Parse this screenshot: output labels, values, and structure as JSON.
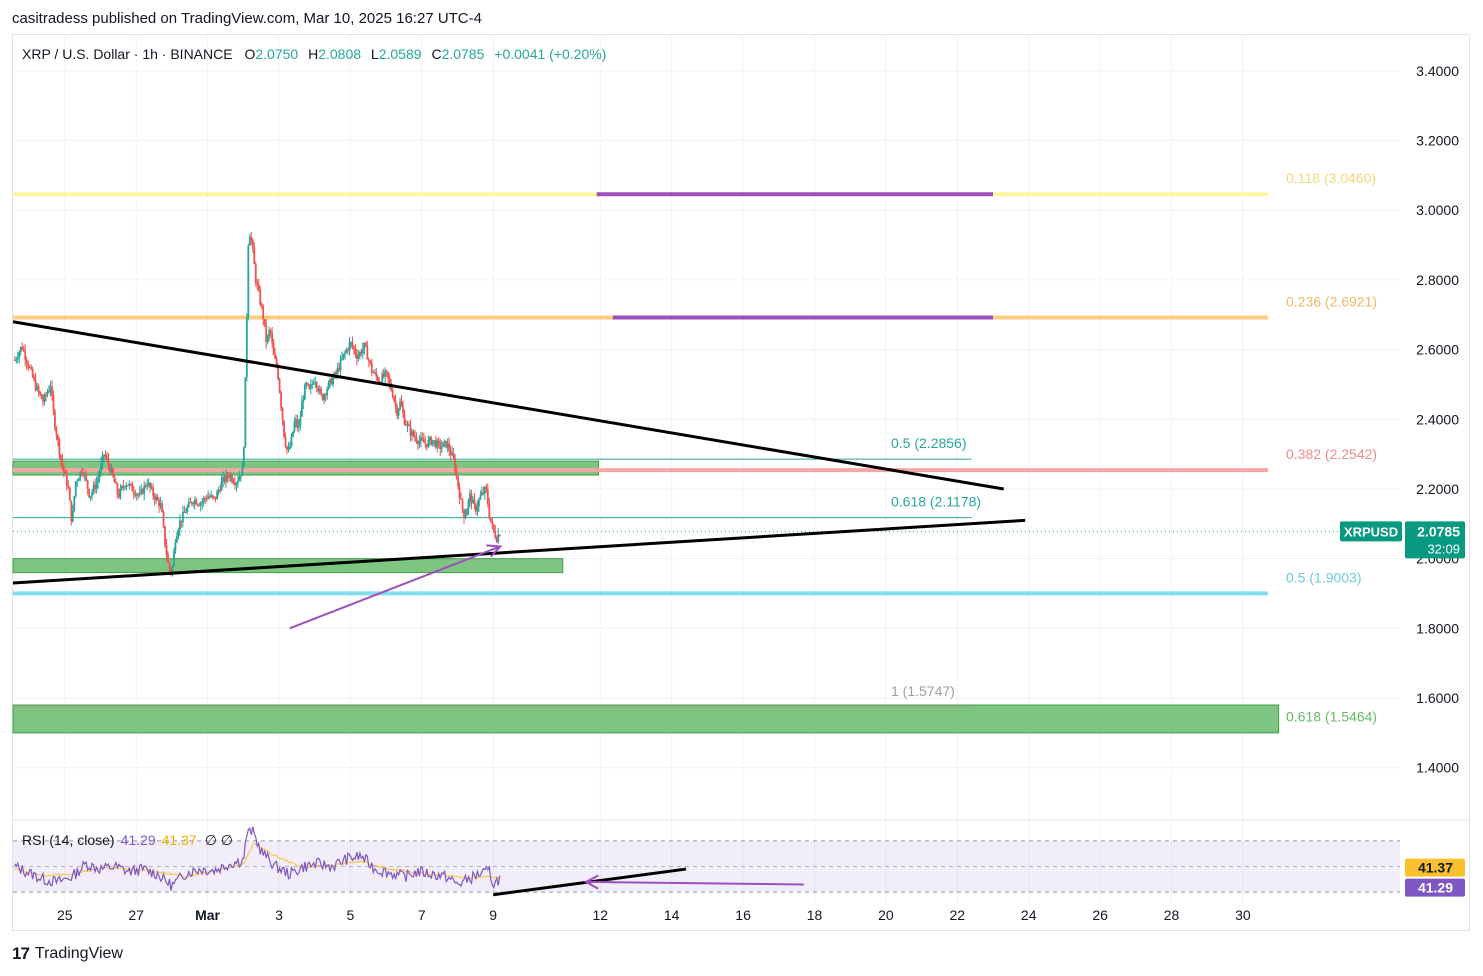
{
  "publisher": "casitradess published on TradingView.com, Mar 10, 2025 16:27 UTC-4",
  "brand": {
    "logo": "17",
    "name": "TradingView"
  },
  "legend": {
    "symbol": "XRP / U.S. Dollar · 1h · BINANCE",
    "o_label": "O",
    "o": "2.0750",
    "h_label": "H",
    "h": "2.0808",
    "l_label": "L",
    "l": "2.0589",
    "c_label": "C",
    "c": "2.0785",
    "change": "+0.0041 (+0.20%)"
  },
  "colors": {
    "up": "#26a69a",
    "down": "#ef5350",
    "trendline": "#000000",
    "arrow": "#9c4fbd",
    "fib_yellow": "#fff59d",
    "fib_orange": "#ffcc80",
    "fib_pink": "#f4a7a7",
    "fib_cyan": "#80deea",
    "zone": "#66bb6a",
    "rsi": "#7e57c2",
    "rsi_ma": "#f9c74f"
  },
  "chart_data": {
    "type": "candlestick",
    "symbol": "XRPUSD",
    "interval": "1h",
    "y_range": [
      1.25,
      3.5
    ],
    "y_ticks": [
      "3.4000",
      "3.2000",
      "3.0000",
      "2.8000",
      "2.6000",
      "2.4000",
      "2.2000",
      "2.0000",
      "1.8000",
      "1.6000",
      "1.4000"
    ],
    "y_tick_values": [
      3.4,
      3.2,
      3.0,
      2.8,
      2.6,
      2.4,
      2.2,
      2.0,
      1.8,
      1.6,
      1.4
    ],
    "x_ticks": [
      "25",
      "27",
      "Mar",
      "3",
      "5",
      "7",
      "9",
      "12",
      "14",
      "16",
      "18",
      "20",
      "22",
      "24",
      "26",
      "28",
      "30"
    ],
    "x_tick_days": [
      -4,
      -2,
      0,
      2,
      4,
      6,
      8,
      11,
      13,
      15,
      17,
      19,
      21,
      23,
      25,
      27,
      29
    ],
    "x_domain_days": [
      -5.45,
      33.4
    ],
    "price_path": [
      [
        -5.4,
        2.57
      ],
      [
        -5.2,
        2.61
      ],
      [
        -5.0,
        2.55
      ],
      [
        -4.8,
        2.49
      ],
      [
        -4.6,
        2.45
      ],
      [
        -4.4,
        2.5
      ],
      [
        -4.3,
        2.4
      ],
      [
        -4.2,
        2.34
      ],
      [
        -4.1,
        2.28
      ],
      [
        -3.9,
        2.2
      ],
      [
        -3.8,
        2.1
      ],
      [
        -3.7,
        2.22
      ],
      [
        -3.5,
        2.26
      ],
      [
        -3.3,
        2.18
      ],
      [
        -3.1,
        2.22
      ],
      [
        -2.9,
        2.3
      ],
      [
        -2.7,
        2.25
      ],
      [
        -2.5,
        2.18
      ],
      [
        -2.3,
        2.22
      ],
      [
        -2.1,
        2.2
      ],
      [
        -1.9,
        2.18
      ],
      [
        -1.7,
        2.22
      ],
      [
        -1.5,
        2.18
      ],
      [
        -1.3,
        2.15
      ],
      [
        -1.2,
        2.05
      ],
      [
        -1.1,
        1.98
      ],
      [
        -1.0,
        1.96
      ],
      [
        -0.9,
        2.06
      ],
      [
        -0.8,
        2.1
      ],
      [
        -0.6,
        2.14
      ],
      [
        -0.4,
        2.17
      ],
      [
        -0.2,
        2.16
      ],
      [
        0.0,
        2.18
      ],
      [
        0.2,
        2.17
      ],
      [
        0.4,
        2.22
      ],
      [
        0.6,
        2.24
      ],
      [
        0.8,
        2.22
      ],
      [
        0.9,
        2.24
      ],
      [
        1.0,
        2.26
      ],
      [
        1.08,
        2.6
      ],
      [
        1.15,
        2.95
      ],
      [
        1.25,
        2.9
      ],
      [
        1.35,
        2.8
      ],
      [
        1.45,
        2.75
      ],
      [
        1.55,
        2.7
      ],
      [
        1.65,
        2.62
      ],
      [
        1.75,
        2.66
      ],
      [
        1.85,
        2.58
      ],
      [
        1.95,
        2.55
      ],
      [
        2.05,
        2.45
      ],
      [
        2.15,
        2.35
      ],
      [
        2.25,
        2.3
      ],
      [
        2.35,
        2.34
      ],
      [
        2.45,
        2.4
      ],
      [
        2.55,
        2.37
      ],
      [
        2.65,
        2.45
      ],
      [
        2.75,
        2.5
      ],
      [
        2.85,
        2.48
      ],
      [
        3.0,
        2.52
      ],
      [
        3.2,
        2.46
      ],
      [
        3.4,
        2.5
      ],
      [
        3.6,
        2.53
      ],
      [
        3.8,
        2.58
      ],
      [
        4.0,
        2.62
      ],
      [
        4.2,
        2.58
      ],
      [
        4.4,
        2.61
      ],
      [
        4.6,
        2.54
      ],
      [
        4.8,
        2.51
      ],
      [
        5.0,
        2.53
      ],
      [
        5.2,
        2.47
      ],
      [
        5.3,
        2.42
      ],
      [
        5.4,
        2.45
      ],
      [
        5.5,
        2.4
      ],
      [
        5.7,
        2.36
      ],
      [
        5.9,
        2.34
      ],
      [
        6.1,
        2.33
      ],
      [
        6.3,
        2.34
      ],
      [
        6.5,
        2.32
      ],
      [
        6.7,
        2.33
      ],
      [
        6.9,
        2.28
      ],
      [
        7.0,
        2.22
      ],
      [
        7.1,
        2.16
      ],
      [
        7.2,
        2.12
      ],
      [
        7.35,
        2.18
      ],
      [
        7.5,
        2.14
      ],
      [
        7.65,
        2.18
      ],
      [
        7.8,
        2.2
      ],
      [
        7.9,
        2.12
      ],
      [
        8.0,
        2.08
      ],
      [
        8.1,
        2.06
      ],
      [
        8.2,
        2.0785
      ]
    ],
    "horizontal_levels": [
      {
        "label": "0.118 (3.0460)",
        "value": 3.046,
        "color": "#fff59d",
        "x_end_day": 29.7
      },
      {
        "label": "0.236 (2.6921)",
        "value": 2.6921,
        "color": "#ffcc80",
        "x_end_day": 29.7
      },
      {
        "label": "0.382 (2.2542)",
        "value": 2.2542,
        "color": "#f4a7a7",
        "x_end_day": 29.7
      },
      {
        "label": "0.5 (1.9003)",
        "value": 1.9003,
        "color": "#80deea",
        "x_end_day": 29.7
      }
    ],
    "purple_segments": [
      {
        "value": 3.046,
        "x_start_day": 10.9,
        "x_end_day": 22.0
      },
      {
        "value": 2.6921,
        "x_start_day": 11.35,
        "x_end_day": 22.0
      }
    ],
    "thin_levels": [
      {
        "label": "0.5 (2.2856)",
        "value": 2.2856,
        "color": "#26a69a",
        "x_end_day": 21.4
      },
      {
        "label": "0.618 (2.1178)",
        "value": 2.1178,
        "color": "#26a69a",
        "x_end_day": 21.4
      },
      {
        "label": "1 (1.5747)",
        "value": 1.5747,
        "color": "#9e9e9e",
        "x_end_day": 21.4
      }
    ],
    "extra_fib": {
      "label": "0.618 (1.5464)",
      "value": 1.5464,
      "color": "#66bb6a"
    },
    "zones": [
      {
        "from": 2.24,
        "to": 2.28,
        "x_start_day": -5.45,
        "x_end_day": 10.95
      },
      {
        "from": 1.96,
        "to": 2.0,
        "x_start_day": -5.45,
        "x_end_day": 9.95
      },
      {
        "from": 1.5,
        "to": 1.58,
        "x_start_day": -5.45,
        "x_end_day": 30.0
      }
    ],
    "trendlines": [
      {
        "from": [
          -5.45,
          2.68
        ],
        "to": [
          22.3,
          2.2
        ]
      },
      {
        "from": [
          -5.45,
          1.93
        ],
        "to": [
          22.9,
          2.11
        ]
      }
    ],
    "arrow": {
      "from": [
        2.3,
        1.8
      ],
      "to": [
        8.2,
        2.035
      ]
    },
    "last_price": {
      "label": "XRPUSD",
      "value": "2.0785",
      "countdown": "32:09"
    },
    "rsi": {
      "title": "RSI (14, close)",
      "value": "41.29",
      "ma_value": "41.37",
      "extra": "∅  ∅",
      "range": [
        20,
        80
      ],
      "band": [
        30,
        70
      ],
      "series": [
        [
          -5.4,
          50
        ],
        [
          -5.0,
          45
        ],
        [
          -4.6,
          40
        ],
        [
          -4.2,
          38
        ],
        [
          -3.8,
          42
        ],
        [
          -3.4,
          52
        ],
        [
          -3.0,
          48
        ],
        [
          -2.6,
          50
        ],
        [
          -2.2,
          46
        ],
        [
          -1.8,
          48
        ],
        [
          -1.4,
          44
        ],
        [
          -1.0,
          35
        ],
        [
          -0.6,
          45
        ],
        [
          -0.2,
          48
        ],
        [
          0.2,
          47
        ],
        [
          0.6,
          52
        ],
        [
          1.0,
          55
        ],
        [
          1.1,
          75
        ],
        [
          1.25,
          78
        ],
        [
          1.5,
          62
        ],
        [
          1.9,
          50
        ],
        [
          2.3,
          44
        ],
        [
          2.7,
          50
        ],
        [
          3.1,
          52
        ],
        [
          3.5,
          50
        ],
        [
          3.9,
          56
        ],
        [
          4.3,
          58
        ],
        [
          4.7,
          48
        ],
        [
          5.1,
          45
        ],
        [
          5.5,
          42
        ],
        [
          5.9,
          46
        ],
        [
          6.3,
          44
        ],
        [
          6.7,
          42
        ],
        [
          7.0,
          36
        ],
        [
          7.3,
          40
        ],
        [
          7.6,
          44
        ],
        [
          7.9,
          46
        ],
        [
          8.0,
          36
        ],
        [
          8.2,
          41.29
        ]
      ],
      "ma_series": [
        [
          -5.4,
          48
        ],
        [
          -4.6,
          43
        ],
        [
          -3.8,
          44
        ],
        [
          -3.0,
          49
        ],
        [
          -2.2,
          48
        ],
        [
          -1.4,
          46
        ],
        [
          -0.6,
          42
        ],
        [
          0.2,
          47
        ],
        [
          1.0,
          52
        ],
        [
          1.3,
          68
        ],
        [
          1.9,
          58
        ],
        [
          2.7,
          49
        ],
        [
          3.5,
          51
        ],
        [
          4.3,
          54
        ],
        [
          5.1,
          48
        ],
        [
          5.9,
          45
        ],
        [
          6.7,
          43
        ],
        [
          7.3,
          41
        ],
        [
          7.9,
          42
        ],
        [
          8.2,
          41.37
        ]
      ],
      "trendline": {
        "from": [
          8.0,
          28
        ],
        "to": [
          13.4,
          48
        ]
      },
      "arrow": {
        "from": [
          16.7,
          36
        ],
        "to": [
          10.6,
          38
        ]
      }
    }
  }
}
